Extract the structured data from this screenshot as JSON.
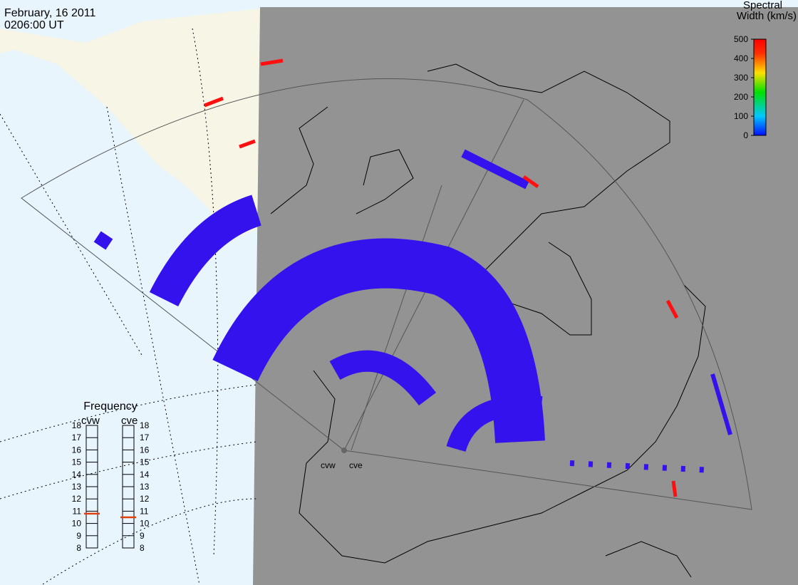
{
  "header": {
    "date": "February, 16 2011",
    "time": "0206:00 UT"
  },
  "colorbar": {
    "title": [
      "Spectral",
      "Width (km/s)"
    ],
    "range": [
      0,
      500
    ],
    "ticks": [
      0,
      100,
      200,
      300,
      400,
      500
    ]
  },
  "frequency": {
    "title": "Frequency",
    "range": [
      8,
      18
    ],
    "ticks": [
      8,
      9,
      10,
      11,
      12,
      13,
      14,
      15,
      16,
      17,
      18
    ],
    "radars": [
      {
        "name": "cvw",
        "value": 10.8
      },
      {
        "name": "cve",
        "value": 10.5
      }
    ]
  },
  "map": {
    "radar_labels": [
      "cvw",
      "cve"
    ]
  }
}
